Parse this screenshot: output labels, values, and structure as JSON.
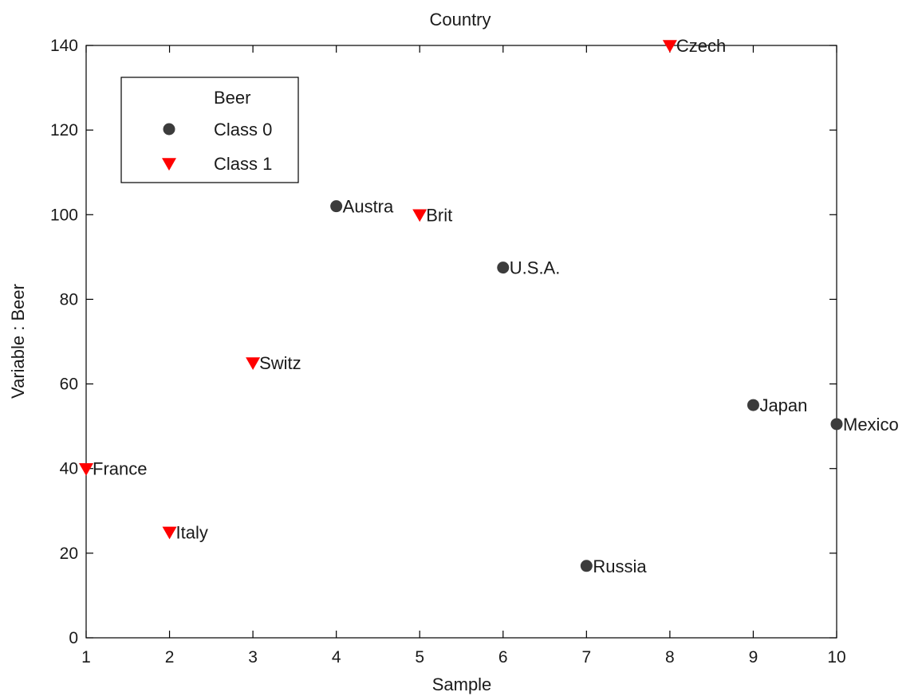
{
  "chart_data": {
    "type": "scatter",
    "title": "Country",
    "xlabel": "Sample",
    "ylabel": "Variable : Beer",
    "xlim": [
      1,
      10
    ],
    "ylim": [
      0,
      140
    ],
    "xticks": [
      1,
      2,
      3,
      4,
      5,
      6,
      7,
      8,
      9,
      10
    ],
    "yticks": [
      0,
      20,
      40,
      60,
      80,
      100,
      120,
      140
    ],
    "grid": false,
    "legend": {
      "placement": "top-left",
      "title": "Beer",
      "entries": [
        {
          "label": "Class 0",
          "marker": "circle",
          "color": "#3c3c3c"
        },
        {
          "label": "Class 1",
          "marker": "triangle-down",
          "color": "#ff0000"
        }
      ]
    },
    "series": [
      {
        "name": "Class 0",
        "marker": "circle",
        "color": "#3c3c3c",
        "points": [
          {
            "x": 4,
            "y": 102,
            "label": "Austra"
          },
          {
            "x": 6,
            "y": 87.5,
            "label": "U.S.A."
          },
          {
            "x": 7,
            "y": 17,
            "label": "Russia"
          },
          {
            "x": 9,
            "y": 55,
            "label": "Japan"
          },
          {
            "x": 10,
            "y": 50.5,
            "label": "Mexico"
          }
        ]
      },
      {
        "name": "Class 1",
        "marker": "triangle-down",
        "color": "#ff0000",
        "points": [
          {
            "x": 1,
            "y": 40,
            "label": "France"
          },
          {
            "x": 2,
            "y": 25,
            "label": "Italy"
          },
          {
            "x": 3,
            "y": 65,
            "label": "Switz"
          },
          {
            "x": 5,
            "y": 100,
            "label": "Brit"
          },
          {
            "x": 8,
            "y": 140,
            "label": "Czech"
          }
        ]
      }
    ]
  }
}
